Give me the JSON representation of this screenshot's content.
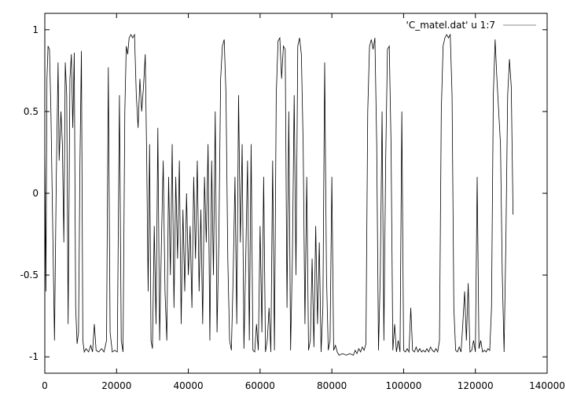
{
  "chart_data": {
    "type": "line",
    "legend": {
      "label": "'C_matel.dat' u 1:7",
      "placement": "top-right"
    },
    "xlim": [
      0,
      140000
    ],
    "ylim": [
      -1.1,
      1.1
    ],
    "x_ticks": [
      0,
      20000,
      40000,
      60000,
      80000,
      100000,
      120000,
      140000
    ],
    "x_tick_labels": [
      "0",
      "20000",
      "40000",
      "60000",
      "80000",
      "100000",
      "120000",
      "140000"
    ],
    "y_ticks": [
      1,
      0.5,
      0,
      -0.5,
      -1
    ],
    "y_tick_labels": [
      "1",
      "0.5",
      "0",
      "-0.5",
      "-1"
    ],
    "grid": false,
    "series": [
      {
        "name": "'C_matel.dat' u 1:7",
        "color": "#000000",
        "points": [
          [
            0,
            0.3
          ],
          [
            300,
            -0.6
          ],
          [
            600,
            0.7
          ],
          [
            900,
            0.9
          ],
          [
            1300,
            0.88
          ],
          [
            1700,
            0.5
          ],
          [
            2200,
            -0.2
          ],
          [
            2700,
            -0.9
          ],
          [
            3200,
            0.1
          ],
          [
            3700,
            0.8
          ],
          [
            4000,
            0.2
          ],
          [
            4500,
            0.5
          ],
          [
            4900,
            0.3
          ],
          [
            5300,
            -0.3
          ],
          [
            5700,
            0.8
          ],
          [
            6100,
            0.6
          ],
          [
            6500,
            -0.8
          ],
          [
            7000,
            0.7
          ],
          [
            7400,
            0.85
          ],
          [
            7800,
            0.4
          ],
          [
            8200,
            0.86
          ],
          [
            8600,
            -0.7
          ],
          [
            9000,
            -0.92
          ],
          [
            9400,
            -0.85
          ],
          [
            9800,
            0.2
          ],
          [
            10200,
            0.87
          ],
          [
            10600,
            -0.9
          ],
          [
            11000,
            -0.97
          ],
          [
            11500,
            -0.95
          ],
          [
            12200,
            -0.97
          ],
          [
            12800,
            -0.93
          ],
          [
            13300,
            -0.97
          ],
          [
            13800,
            -0.8
          ],
          [
            14300,
            -0.96
          ],
          [
            15000,
            -0.97
          ],
          [
            15800,
            -0.95
          ],
          [
            16500,
            -0.97
          ],
          [
            17200,
            -0.9
          ],
          [
            17700,
            0.77
          ],
          [
            18200,
            -0.85
          ],
          [
            18800,
            -0.97
          ],
          [
            19500,
            -0.96
          ],
          [
            20200,
            -0.97
          ],
          [
            20800,
            0.6
          ],
          [
            21300,
            -0.9
          ],
          [
            21800,
            -0.97
          ],
          [
            22300,
            0.5
          ],
          [
            22700,
            0.9
          ],
          [
            23100,
            0.85
          ],
          [
            23500,
            0.95
          ],
          [
            24000,
            0.97
          ],
          [
            24500,
            0.95
          ],
          [
            25000,
            0.97
          ],
          [
            25500,
            0.6
          ],
          [
            26000,
            0.4
          ],
          [
            26500,
            0.7
          ],
          [
            27000,
            0.5
          ],
          [
            27500,
            0.65
          ],
          [
            28000,
            0.85
          ],
          [
            28400,
            0.2
          ],
          [
            28800,
            -0.6
          ],
          [
            29200,
            0.3
          ],
          [
            29600,
            -0.9
          ],
          [
            30000,
            -0.95
          ],
          [
            30500,
            -0.2
          ],
          [
            31000,
            -0.8
          ],
          [
            31500,
            0.4
          ],
          [
            32000,
            -0.9
          ],
          [
            32500,
            -0.3
          ],
          [
            33000,
            0.2
          ],
          [
            33500,
            -0.6
          ],
          [
            34000,
            -0.9
          ],
          [
            34500,
            0.1
          ],
          [
            35000,
            -0.5
          ],
          [
            35500,
            0.3
          ],
          [
            36000,
            -0.7
          ],
          [
            36500,
            0.1
          ],
          [
            37000,
            -0.4
          ],
          [
            37500,
            0.2
          ],
          [
            38000,
            -0.8
          ],
          [
            38500,
            -0.1
          ],
          [
            39000,
            -0.6
          ],
          [
            39500,
            0.0
          ],
          [
            40000,
            -0.5
          ],
          [
            40500,
            -0.2
          ],
          [
            41000,
            -0.7
          ],
          [
            41500,
            0.1
          ],
          [
            42000,
            -0.4
          ],
          [
            42500,
            0.2
          ],
          [
            43000,
            -0.6
          ],
          [
            43500,
            -0.1
          ],
          [
            44000,
            -0.8
          ],
          [
            44500,
            0.1
          ],
          [
            45000,
            -0.3
          ],
          [
            45500,
            0.3
          ],
          [
            46000,
            -0.9
          ],
          [
            46500,
            0.2
          ],
          [
            47000,
            -0.5
          ],
          [
            47500,
            0.5
          ],
          [
            48000,
            -0.85
          ],
          [
            48500,
            -0.3
          ],
          [
            49000,
            0.7
          ],
          [
            49500,
            0.9
          ],
          [
            50000,
            0.94
          ],
          [
            50500,
            0.6
          ],
          [
            51000,
            -0.4
          ],
          [
            51500,
            -0.9
          ],
          [
            52000,
            -0.96
          ],
          [
            52500,
            -0.5
          ],
          [
            53000,
            0.1
          ],
          [
            53500,
            -0.8
          ],
          [
            54000,
            0.6
          ],
          [
            54500,
            -0.3
          ],
          [
            55000,
            0.3
          ],
          [
            55500,
            -0.95
          ],
          [
            56000,
            -0.4
          ],
          [
            56500,
            0.2
          ],
          [
            57000,
            -0.9
          ],
          [
            57500,
            0.3
          ],
          [
            58000,
            -0.96
          ],
          [
            58500,
            -0.97
          ],
          [
            59000,
            -0.8
          ],
          [
            59500,
            -0.96
          ],
          [
            60000,
            -0.2
          ],
          [
            60500,
            -0.85
          ],
          [
            61000,
            0.1
          ],
          [
            61500,
            -0.97
          ],
          [
            62000,
            -0.9
          ],
          [
            62500,
            -0.7
          ],
          [
            63000,
            -0.97
          ],
          [
            63500,
            0.2
          ],
          [
            64000,
            -0.96
          ],
          [
            64500,
            0.6
          ],
          [
            65000,
            0.93
          ],
          [
            65500,
            0.95
          ],
          [
            66000,
            0.7
          ],
          [
            66500,
            0.9
          ],
          [
            67000,
            0.88
          ],
          [
            67500,
            -0.7
          ],
          [
            68000,
            0.5
          ],
          [
            68500,
            -0.96
          ],
          [
            69000,
            -0.4
          ],
          [
            69500,
            0.6
          ],
          [
            70000,
            -0.5
          ],
          [
            70500,
            0.9
          ],
          [
            71000,
            0.95
          ],
          [
            71500,
            0.85
          ],
          [
            72000,
            0.3
          ],
          [
            72500,
            -0.8
          ],
          [
            73000,
            0.1
          ],
          [
            73500,
            -0.96
          ],
          [
            74000,
            -0.9
          ],
          [
            74500,
            -0.4
          ],
          [
            75000,
            -0.94
          ],
          [
            75500,
            -0.2
          ],
          [
            76000,
            -0.8
          ],
          [
            76500,
            -0.3
          ],
          [
            77000,
            -0.97
          ],
          [
            77500,
            -0.7
          ],
          [
            78000,
            0.8
          ],
          [
            78500,
            -0.5
          ],
          [
            79000,
            -0.96
          ],
          [
            79500,
            -0.9
          ],
          [
            80000,
            0.1
          ],
          [
            80500,
            -0.96
          ],
          [
            81000,
            -0.93
          ],
          [
            81500,
            -0.97
          ],
          [
            82000,
            -0.99
          ],
          [
            83000,
            -0.98
          ],
          [
            84000,
            -0.99
          ],
          [
            85000,
            -0.98
          ],
          [
            86000,
            -0.99
          ],
          [
            86500,
            -0.96
          ],
          [
            87000,
            -0.98
          ],
          [
            87500,
            -0.95
          ],
          [
            88000,
            -0.97
          ],
          [
            88500,
            -0.94
          ],
          [
            89000,
            -0.96
          ],
          [
            89500,
            -0.92
          ],
          [
            90000,
            0.5
          ],
          [
            90500,
            0.9
          ],
          [
            91000,
            0.94
          ],
          [
            91500,
            0.88
          ],
          [
            92000,
            0.95
          ],
          [
            92500,
            0.3
          ],
          [
            93000,
            -0.96
          ],
          [
            93500,
            -0.5
          ],
          [
            94000,
            0.5
          ],
          [
            94500,
            -0.9
          ],
          [
            95000,
            0.2
          ],
          [
            95500,
            0.88
          ],
          [
            96000,
            0.9
          ],
          [
            96500,
            0.3
          ],
          [
            97000,
            -0.96
          ],
          [
            97500,
            -0.8
          ],
          [
            98000,
            -0.97
          ],
          [
            98500,
            -0.9
          ],
          [
            99000,
            -0.97
          ],
          [
            99500,
            0.5
          ],
          [
            100000,
            -0.96
          ],
          [
            100500,
            -0.97
          ],
          [
            101000,
            -0.95
          ],
          [
            101500,
            -0.97
          ],
          [
            102000,
            -0.7
          ],
          [
            102500,
            -0.96
          ],
          [
            103000,
            -0.97
          ],
          [
            103500,
            -0.94
          ],
          [
            104000,
            -0.97
          ],
          [
            104500,
            -0.95
          ],
          [
            105000,
            -0.97
          ],
          [
            105500,
            -0.96
          ],
          [
            106000,
            -0.97
          ],
          [
            106500,
            -0.95
          ],
          [
            107000,
            -0.97
          ],
          [
            107500,
            -0.94
          ],
          [
            108000,
            -0.96
          ],
          [
            108500,
            -0.97
          ],
          [
            109000,
            -0.95
          ],
          [
            109500,
            -0.97
          ],
          [
            110000,
            -0.9
          ],
          [
            110500,
            0.5
          ],
          [
            111000,
            0.9
          ],
          [
            111500,
            0.95
          ],
          [
            112000,
            0.97
          ],
          [
            112500,
            0.95
          ],
          [
            113000,
            0.97
          ],
          [
            113500,
            0.6
          ],
          [
            114000,
            -0.7
          ],
          [
            114500,
            -0.96
          ],
          [
            115000,
            -0.97
          ],
          [
            115500,
            -0.94
          ],
          [
            116000,
            -0.97
          ],
          [
            116500,
            -0.8
          ],
          [
            117000,
            -0.6
          ],
          [
            117500,
            -0.9
          ],
          [
            118000,
            -0.55
          ],
          [
            118500,
            -0.97
          ],
          [
            119000,
            -0.96
          ],
          [
            119500,
            -0.9
          ],
          [
            120000,
            -0.97
          ],
          [
            120500,
            0.1
          ],
          [
            121000,
            -0.95
          ],
          [
            121500,
            -0.9
          ],
          [
            122000,
            -0.97
          ],
          [
            122500,
            -0.96
          ],
          [
            123000,
            -0.97
          ],
          [
            123500,
            -0.95
          ],
          [
            124000,
            -0.96
          ],
          [
            124500,
            -0.7
          ],
          [
            125000,
            0.6
          ],
          [
            125500,
            0.94
          ],
          [
            126000,
            0.7
          ],
          [
            126500,
            0.5
          ],
          [
            127000,
            0.3
          ],
          [
            127500,
            -0.5
          ],
          [
            128000,
            -0.97
          ],
          [
            128500,
            -0.3
          ],
          [
            129000,
            0.6
          ],
          [
            129500,
            0.82
          ],
          [
            130000,
            0.65
          ],
          [
            130500,
            -0.13
          ]
        ]
      }
    ]
  }
}
